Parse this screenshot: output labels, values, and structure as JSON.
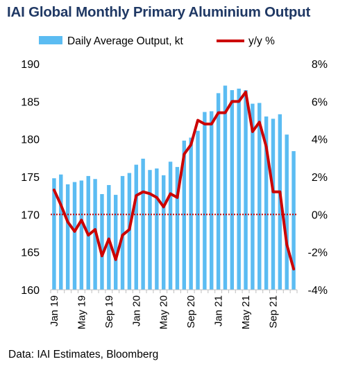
{
  "chart_data": {
    "type": "bar-line-combo",
    "title": "IAI Global Monthly Primary Aluminium Output",
    "source": "Data: IAI Estimates, Bloomberg",
    "colors": {
      "bar": "#5bbcf2",
      "line": "#cc0000",
      "zero_line": "#cc0000",
      "title": "#1f3864"
    },
    "legend_placement": "top",
    "grid": false,
    "categories": [
      "Jan 19",
      "Feb 19",
      "Mar 19",
      "Apr 19",
      "May 19",
      "Jun 19",
      "Jul 19",
      "Aug 19",
      "Sep 19",
      "Oct 19",
      "Nov 19",
      "Dec 19",
      "Jan 20",
      "Feb 20",
      "Mar 20",
      "Apr 20",
      "May 20",
      "Jun 20",
      "Jul 20",
      "Aug 20",
      "Sep 20",
      "Oct 20",
      "Nov 20",
      "Dec 20",
      "Jan 21",
      "Feb 21",
      "Mar 21",
      "Apr 21",
      "May 21",
      "Jun 21",
      "Jul 21",
      "Aug 21",
      "Sep 21",
      "Oct 21",
      "Nov 21",
      "Dec 21"
    ],
    "x_tick_labels": [
      "Jan 19",
      "May 19",
      "Sep 19",
      "Jan 20",
      "May 20",
      "Sep 20",
      "Jan 21",
      "May 21",
      "Sep 21"
    ],
    "x_tick_every": 4,
    "left_axis": {
      "ylim": [
        160,
        190
      ],
      "ticks": [
        "160",
        "165",
        "170",
        "175",
        "180",
        "185",
        "190"
      ]
    },
    "right_axis": {
      "ylim": [
        -4,
        8
      ],
      "ticks": [
        "-4%",
        "-2%",
        "0%",
        "2%",
        "4%",
        "6%",
        "8%"
      ],
      "zero_line_value": 0
    },
    "series": [
      {
        "name": "Daily Average Output, kt",
        "type": "bar",
        "axis": "left",
        "values": [
          174.8,
          175.3,
          174.0,
          174.3,
          174.5,
          175.1,
          174.7,
          172.7,
          173.9,
          172.6,
          175.1,
          175.5,
          176.6,
          177.4,
          175.9,
          176.1,
          175.2,
          177.0,
          176.3,
          179.8,
          180.2,
          181.1,
          183.6,
          183.7,
          186.1,
          187.1,
          186.5,
          186.7,
          186.5,
          184.7,
          184.8,
          183.0,
          182.7,
          183.3,
          180.6,
          178.4
        ]
      },
      {
        "name": "y/y %",
        "type": "line",
        "axis": "right",
        "values": [
          1.3,
          0.5,
          -0.4,
          -0.9,
          -0.3,
          -1.1,
          -0.8,
          -2.2,
          -1.3,
          -2.4,
          -1.1,
          -0.8,
          1.0,
          1.2,
          1.1,
          0.9,
          0.4,
          1.1,
          0.9,
          3.2,
          3.7,
          5.0,
          4.8,
          4.8,
          5.4,
          5.4,
          6.0,
          6.0,
          6.5,
          4.4,
          4.9,
          3.6,
          1.2,
          1.2,
          -1.6,
          -2.9
        ]
      }
    ]
  }
}
